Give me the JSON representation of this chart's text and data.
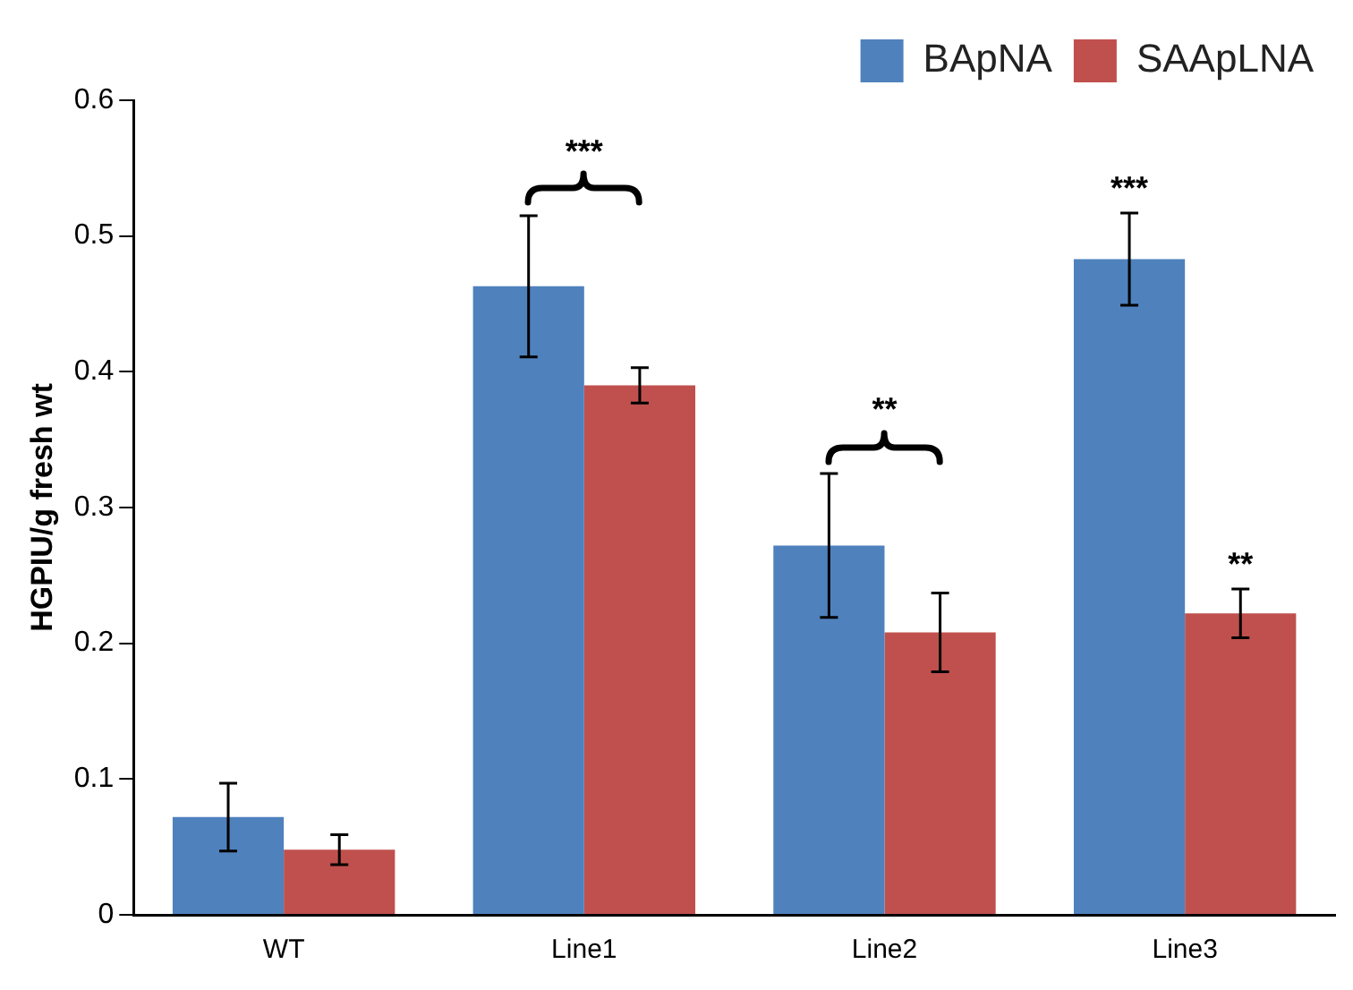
{
  "chart_data": {
    "type": "bar",
    "ylabel": "HGPIU/g fresh wt",
    "categories": [
      "WT",
      "Line1",
      "Line2",
      "Line3"
    ],
    "series": [
      {
        "name": "BApNA",
        "color": "#4f81bd",
        "values": [
          0.072,
          0.463,
          0.272,
          0.483
        ],
        "errors": [
          0.025,
          0.052,
          0.053,
          0.034
        ]
      },
      {
        "name": "SAApLNA",
        "color": "#c0504d",
        "values": [
          0.048,
          0.39,
          0.208,
          0.222
        ],
        "errors": [
          0.011,
          0.013,
          0.029,
          0.018
        ]
      }
    ],
    "ylim": [
      0,
      0.6
    ],
    "yticks": [
      0,
      0.1,
      0.2,
      0.3,
      0.4,
      0.5,
      0.6
    ],
    "grid": false,
    "legend": "top right",
    "annotations": [
      "***",
      "**",
      "***",
      "**"
    ]
  }
}
